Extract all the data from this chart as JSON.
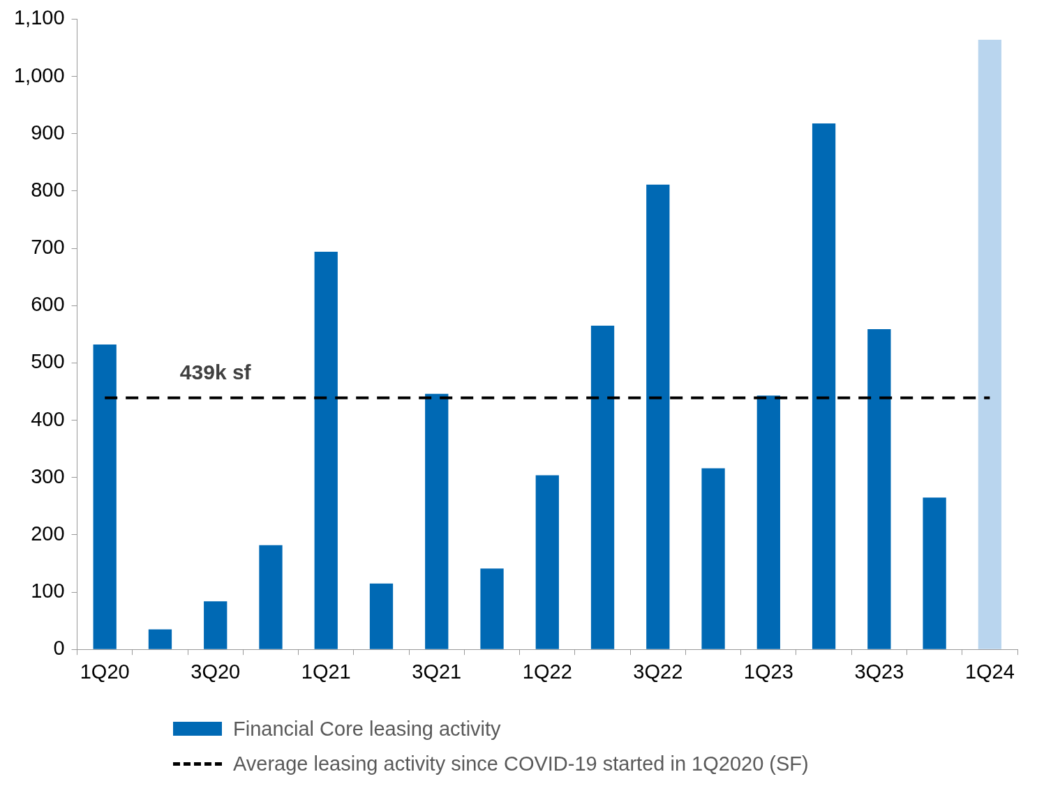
{
  "chart_data": {
    "type": "bar",
    "categories": [
      "1Q20",
      null,
      "3Q20",
      null,
      "1Q21",
      null,
      "3Q21",
      null,
      "1Q22",
      null,
      "3Q22",
      null,
      "1Q23",
      null,
      "3Q23",
      null,
      "1Q24"
    ],
    "series": [
      {
        "name": "Financial Core leasing activity",
        "color": "#0069b4",
        "colors": [
          "#0069b4",
          "#0069b4",
          "#0069b4",
          "#0069b4",
          "#0069b4",
          "#0069b4",
          "#0069b4",
          "#0069b4",
          "#0069b4",
          "#0069b4",
          "#0069b4",
          "#0069b4",
          "#0069b4",
          "#0069b4",
          "#0069b4",
          "#0069b4",
          "#b9d5ee"
        ],
        "values": [
          532,
          35,
          84,
          182,
          694,
          115,
          446,
          141,
          304,
          565,
          811,
          316,
          443,
          918,
          559,
          265,
          1064
        ]
      },
      {
        "type": "line",
        "name": "Average leasing activity since COVID-19 started in 1Q2020 (SF)",
        "color": "#000000",
        "line_style": "dashed",
        "marker": "none",
        "values": [
          439,
          439,
          439,
          439,
          439,
          439,
          439,
          439,
          439,
          439,
          439,
          439,
          439,
          439,
          439,
          439,
          439
        ]
      }
    ],
    "ylim": [
      0,
      1100
    ],
    "yticks": [
      0,
      100,
      200,
      300,
      400,
      500,
      600,
      700,
      800,
      900,
      {
        "value": 1000,
        "label": "1,000"
      },
      {
        "value": 1100,
        "label": "1,100"
      }
    ],
    "grid": false,
    "legend": "bottom",
    "annotations": [
      {
        "text": "439k sf",
        "x": "3Q20",
        "y": 439
      }
    ]
  }
}
